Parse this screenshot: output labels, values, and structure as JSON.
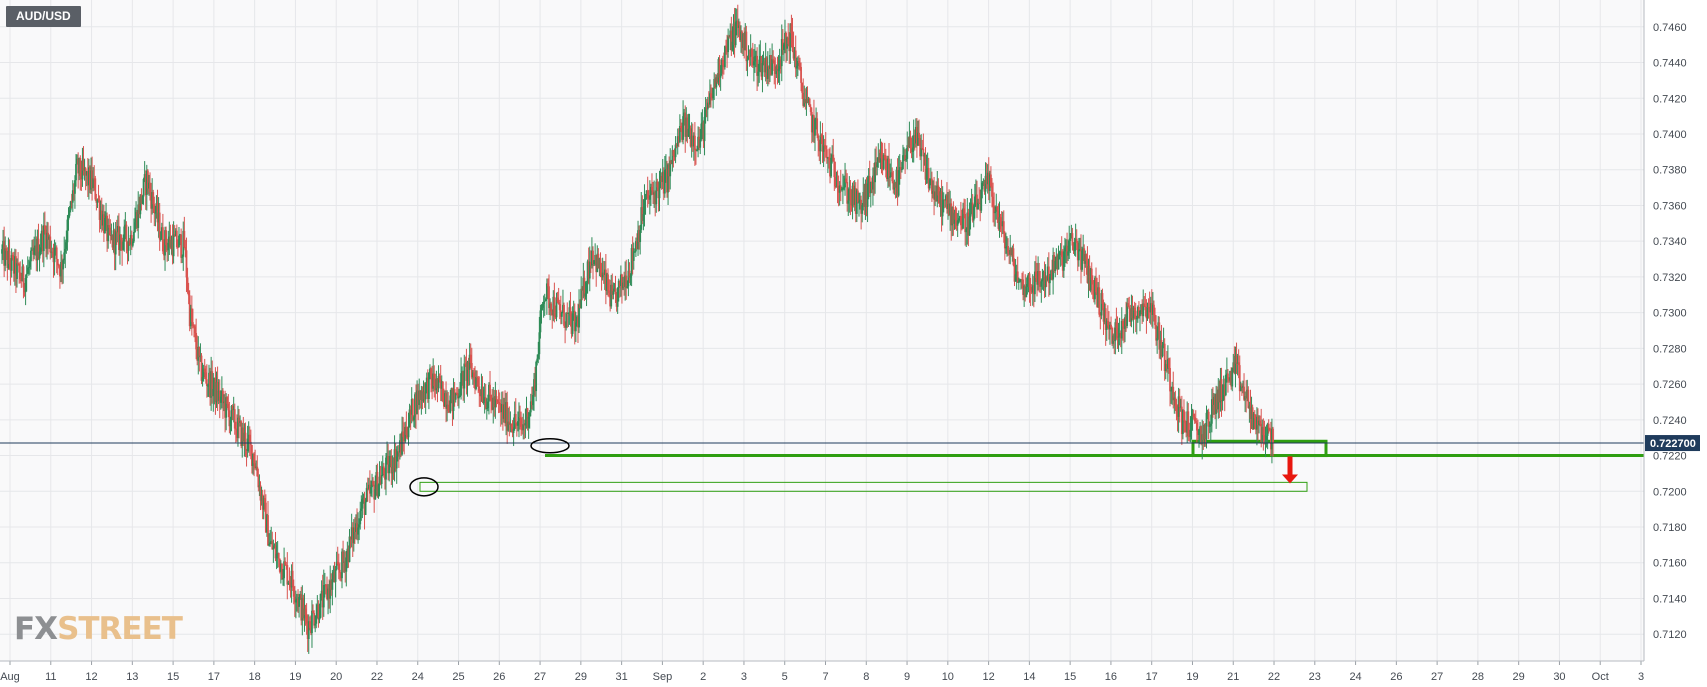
{
  "symbol": "AUD/USD",
  "logo": {
    "part1": "FX",
    "part2": "STREET"
  },
  "colors": {
    "up": "#2e8b57",
    "down": "#d9534f",
    "grid": "#e6e7ea",
    "current_line": "#1f3b5c",
    "support": "#2f9e11",
    "arrow": "#e8170e",
    "price_tag": "#1f3b5c"
  },
  "chart_data": {
    "type": "candlestick",
    "interval": "4h",
    "ylim": [
      0.7105,
      0.7475
    ],
    "yticks": [
      "0.7120",
      "0.7140",
      "0.7160",
      "0.7180",
      "0.7200",
      "0.7220",
      "0.7240",
      "0.7260",
      "0.7280",
      "0.7300",
      "0.7320",
      "0.7340",
      "0.7360",
      "0.7380",
      "0.7400",
      "0.7420",
      "0.7440",
      "0.7460"
    ],
    "xticks": [
      "Aug",
      "11",
      "12",
      "13",
      "15",
      "17",
      "18",
      "19",
      "20",
      "22",
      "24",
      "25",
      "26",
      "27",
      "29",
      "31",
      "Sep",
      "2",
      "3",
      "5",
      "7",
      "8",
      "9",
      "10",
      "12",
      "14",
      "15",
      "16",
      "17",
      "19",
      "21",
      "22",
      "23",
      "24",
      "26",
      "27",
      "28",
      "29",
      "30",
      "Oct",
      "3"
    ],
    "current_price": "0.722700",
    "path": [
      [
        0,
        0.7333
      ],
      [
        4,
        0.7318
      ],
      [
        8,
        0.7345
      ],
      [
        11,
        0.7325
      ],
      [
        14,
        0.738
      ],
      [
        17,
        0.7372
      ],
      [
        20,
        0.734
      ],
      [
        24,
        0.7342
      ],
      [
        27,
        0.7375
      ],
      [
        30,
        0.734
      ],
      [
        34,
        0.7338
      ],
      [
        35,
        0.73
      ],
      [
        37,
        0.7268
      ],
      [
        40,
        0.7255
      ],
      [
        44,
        0.7235
      ],
      [
        47,
        0.722
      ],
      [
        50,
        0.717
      ],
      [
        54,
        0.715
      ],
      [
        57,
        0.7125
      ],
      [
        60,
        0.714
      ],
      [
        64,
        0.7162
      ],
      [
        67,
        0.719
      ],
      [
        70,
        0.7205
      ],
      [
        74,
        0.7222
      ],
      [
        77,
        0.725
      ],
      [
        80,
        0.7262
      ],
      [
        84,
        0.725
      ],
      [
        87,
        0.727
      ],
      [
        90,
        0.7254
      ],
      [
        94,
        0.7242
      ],
      [
        97,
        0.7235
      ],
      [
        99,
        0.7252
      ],
      [
        101,
        0.7312
      ],
      [
        104,
        0.73
      ],
      [
        107,
        0.7292
      ],
      [
        110,
        0.7335
      ],
      [
        114,
        0.7305
      ],
      [
        117,
        0.7325
      ],
      [
        120,
        0.7362
      ],
      [
        124,
        0.7375
      ],
      [
        127,
        0.7405
      ],
      [
        130,
        0.7395
      ],
      [
        134,
        0.744
      ],
      [
        137,
        0.746
      ],
      [
        140,
        0.744
      ],
      [
        144,
        0.7438
      ],
      [
        147,
        0.7455
      ],
      [
        150,
        0.7415
      ],
      [
        154,
        0.7385
      ],
      [
        157,
        0.737
      ],
      [
        160,
        0.7358
      ],
      [
        164,
        0.7385
      ],
      [
        167,
        0.7372
      ],
      [
        170,
        0.74
      ],
      [
        174,
        0.7365
      ],
      [
        177,
        0.7356
      ],
      [
        180,
        0.735
      ],
      [
        184,
        0.7372
      ],
      [
        187,
        0.734
      ],
      [
        190,
        0.7315
      ],
      [
        194,
        0.7318
      ],
      [
        197,
        0.7328
      ],
      [
        200,
        0.734
      ],
      [
        204,
        0.7312
      ],
      [
        207,
        0.7285
      ],
      [
        210,
        0.73
      ],
      [
        214,
        0.7305
      ],
      [
        217,
        0.7272
      ],
      [
        220,
        0.724
      ],
      [
        224,
        0.7232
      ],
      [
        227,
        0.7255
      ],
      [
        230,
        0.7268
      ],
      [
        234,
        0.7235
      ],
      [
        237,
        0.723
      ]
    ],
    "annotations": {
      "support_zone": [
        0.722,
        0.7228
      ],
      "lower_zone": [
        0.72,
        0.7205
      ],
      "arrow": "down"
    }
  }
}
